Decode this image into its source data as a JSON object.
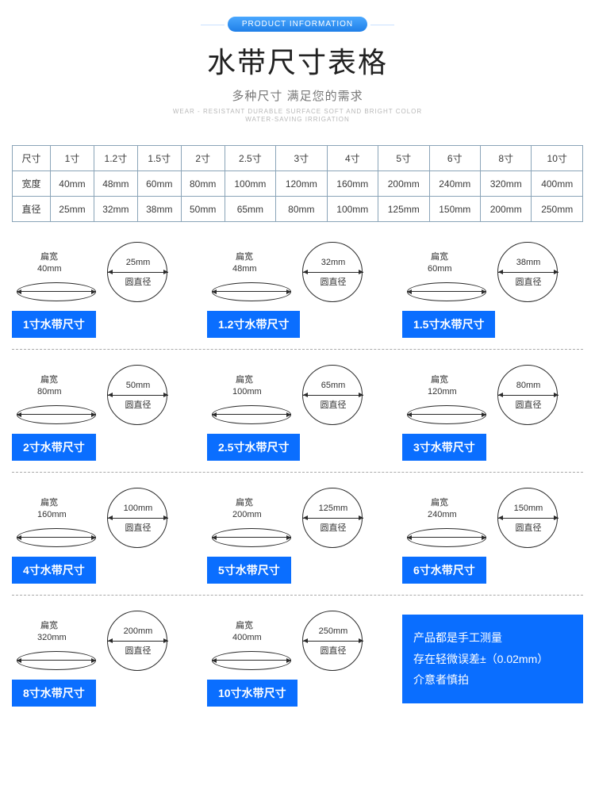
{
  "header": {
    "badge": "PRODUCT INFORMATION",
    "title": "水带尺寸表格",
    "subtitle": "多种尺寸 满足您的需求",
    "en1": "WEAR - RESISTANT DURABLE SURFACE SOFT AND BRIGHT COLOR",
    "en2": "WATER-SAVING IRRIGATION"
  },
  "table": {
    "rows": [
      [
        "尺寸",
        "1寸",
        "1.2寸",
        "1.5寸",
        "2寸",
        "2.5寸",
        "3寸",
        "4寸",
        "5寸",
        "6寸",
        "8寸",
        "10寸"
      ],
      [
        "宽度",
        "40mm",
        "48mm",
        "60mm",
        "80mm",
        "100mm",
        "120mm",
        "160mm",
        "200mm",
        "240mm",
        "320mm",
        "400mm"
      ],
      [
        "直径",
        "25mm",
        "32mm",
        "38mm",
        "50mm",
        "65mm",
        "80mm",
        "100mm",
        "125mm",
        "150mm",
        "200mm",
        "250mm"
      ]
    ]
  },
  "labels": {
    "flat": "扁宽",
    "circle": "圆直径",
    "suffix": "水带尺寸"
  },
  "items": [
    {
      "size": "1寸",
      "flat": "40mm",
      "dia": "25mm"
    },
    {
      "size": "1.2寸",
      "flat": "48mm",
      "dia": "32mm"
    },
    {
      "size": "1.5寸",
      "flat": "60mm",
      "dia": "38mm"
    },
    {
      "size": "2寸",
      "flat": "80mm",
      "dia": "50mm"
    },
    {
      "size": "2.5寸",
      "flat": "100mm",
      "dia": "65mm"
    },
    {
      "size": "3寸",
      "flat": "120mm",
      "dia": "80mm"
    },
    {
      "size": "4寸",
      "flat": "160mm",
      "dia": "100mm"
    },
    {
      "size": "5寸",
      "flat": "200mm",
      "dia": "125mm"
    },
    {
      "size": "6寸",
      "flat": "240mm",
      "dia": "150mm"
    },
    {
      "size": "8寸",
      "flat": "320mm",
      "dia": "200mm"
    },
    {
      "size": "10寸",
      "flat": "400mm",
      "dia": "250mm"
    }
  ],
  "note": {
    "line1": "产品都是手工测量",
    "line2": "存在轻微误差±（0.02mm）",
    "line3": "介意者慎拍"
  },
  "colors": {
    "accent": "#0a6eff",
    "border": "#8aa4b8",
    "text": "#333333"
  }
}
